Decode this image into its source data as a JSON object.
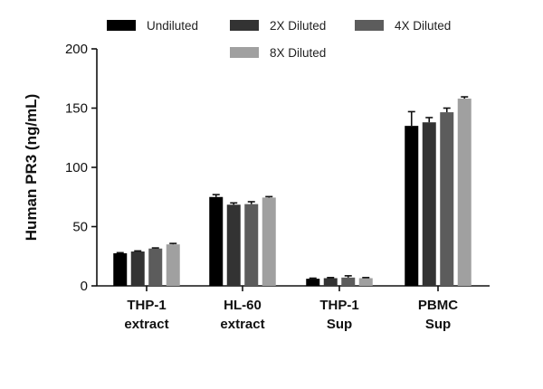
{
  "chart_data": {
    "type": "bar",
    "ylabel": "Human PR3 (ng/mL)",
    "xlabel": "",
    "ylim": [
      0,
      200
    ],
    "yticks": [
      0,
      50,
      100,
      150,
      200
    ],
    "categories": [
      [
        "THP-1",
        "extract"
      ],
      [
        "HL-60",
        "extract"
      ],
      [
        "THP-1",
        "Sup"
      ],
      [
        "PBMC",
        "Sup"
      ]
    ],
    "series": [
      {
        "name": "Undiluted",
        "color": "#000000",
        "values": [
          27.5,
          75,
          6,
          135
        ],
        "errors": [
          0.5,
          2,
          0.5,
          12
        ]
      },
      {
        "name": "2X Diluted",
        "color": "#333333",
        "values": [
          29,
          68.5,
          6.5,
          138
        ],
        "errors": [
          0.5,
          1.5,
          0.5,
          4
        ]
      },
      {
        "name": "4X Diluted",
        "color": "#5c5c5c",
        "values": [
          31.5,
          69,
          7,
          146.5
        ],
        "errors": [
          0.5,
          2,
          1.5,
          3.5
        ]
      },
      {
        "name": "8X Diluted",
        "color": "#a0a0a0",
        "values": [
          35,
          74.5,
          6.5,
          158
        ],
        "errors": [
          0.8,
          0.8,
          0.5,
          1.5
        ]
      }
    ],
    "extra_bar": {
      "series_index": 2,
      "note": ""
    },
    "legend_position": "top"
  }
}
